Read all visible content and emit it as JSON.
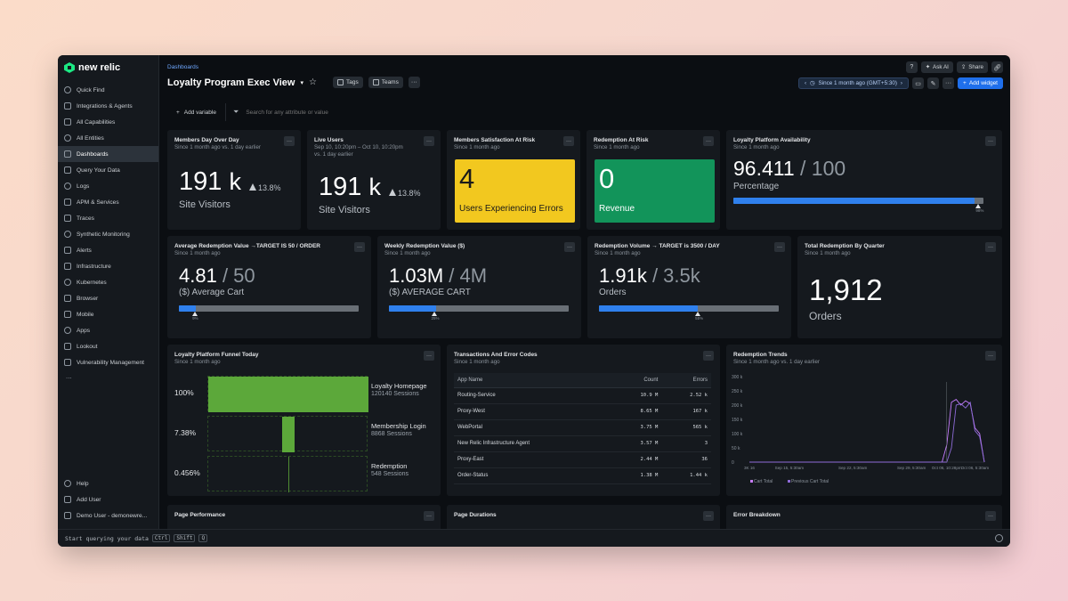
{
  "app": {
    "logo_text": "new relic"
  },
  "sidebar": {
    "items": [
      {
        "label": "Quick Find",
        "icon": "search-icon"
      },
      {
        "label": "Integrations & Agents",
        "icon": "plus-icon"
      },
      {
        "label": "All Capabilities",
        "icon": "grid-icon"
      },
      {
        "label": "All Entities",
        "icon": "entities-icon"
      },
      {
        "label": "Dashboards",
        "icon": "dashboard-icon",
        "active": true
      },
      {
        "label": "Query Your Data",
        "icon": "query-icon"
      },
      {
        "label": "Logs",
        "icon": "logs-icon"
      },
      {
        "label": "APM & Services",
        "icon": "apm-icon"
      },
      {
        "label": "Traces",
        "icon": "traces-icon"
      },
      {
        "label": "Synthetic Monitoring",
        "icon": "synthetics-icon"
      },
      {
        "label": "Alerts",
        "icon": "alerts-icon"
      },
      {
        "label": "Infrastructure",
        "icon": "infrastructure-icon"
      },
      {
        "label": "Kubernetes",
        "icon": "kubernetes-icon"
      },
      {
        "label": "Browser",
        "icon": "browser-icon"
      },
      {
        "label": "Mobile",
        "icon": "mobile-icon"
      },
      {
        "label": "Apps",
        "icon": "apps-icon"
      },
      {
        "label": "Lookout",
        "icon": "lookout-icon"
      },
      {
        "label": "Vulnerability Management",
        "icon": "vulnerability-icon"
      }
    ],
    "more": "...",
    "bottom": [
      {
        "label": "Help",
        "icon": "help-icon"
      },
      {
        "label": "Add User",
        "icon": "add-user-icon"
      },
      {
        "label": "Demo User - demonewre...",
        "icon": "avatar-icon"
      }
    ]
  },
  "header": {
    "breadcrumb": "Dashboards",
    "title": "Loyalty Program Exec View",
    "title_chevron": "▾",
    "tags_label": "Tags",
    "teams_label": "Teams",
    "more": "···",
    "ask_ai": "Ask AI",
    "share": "Share",
    "time_range": "Since 1 month ago (GMT+5:30)",
    "add_widget": "Add widget"
  },
  "filter": {
    "add_variable": "Add variable",
    "search_placeholder": "Search for any attribute or value"
  },
  "widgets": {
    "members_day": {
      "title": "Members Day Over Day",
      "sub": "Since 1 month ago vs. 1 day earlier",
      "value": "191",
      "unit": "k",
      "delta": "13.8%",
      "label": "Site Visitors"
    },
    "live_users": {
      "title": "Live Users",
      "sub1": "Sep 10, 10:20pm – Oct 10, 10:20pm",
      "sub2": "vs. 1 day earlier",
      "value": "191",
      "unit": "k",
      "delta": "13.8%",
      "label": "Site Visitors"
    },
    "members_risk": {
      "title": "Members Satisfaction At Risk",
      "sub": "Since 1 month ago",
      "value": "4",
      "label": "Users Experiencing Errors",
      "color": "#f2c81f"
    },
    "redemption_risk": {
      "title": "Redemption At Risk",
      "sub": "Since 1 month ago",
      "value": "0",
      "label": "Revenue",
      "color": "#12945a"
    },
    "availability": {
      "title": "Loyalty Platform Availability",
      "sub": "Since 1 month ago",
      "value": "96.411",
      "target": "/ 100",
      "label": "Percentage",
      "progress": 0.964,
      "marker": 0.98,
      "marker_label": "98%"
    },
    "avg_redemption": {
      "title": "Average Redemption Value →TARGET IS 50 / ORDER",
      "sub": "Since 1 month ago",
      "value": "4.81",
      "target": "/ 50",
      "label": "($) Average Cart",
      "progress": 0.096,
      "marker": 0.09,
      "marker_label": "9%"
    },
    "weekly_redemption": {
      "title": "Weekly Redemption Value ($)",
      "sub": "Since 1 month ago",
      "value": "1.03M",
      "target": "/ 4M",
      "label": "($) AVERAGE CART",
      "progress": 0.26,
      "marker": 0.25,
      "marker_label": "25%"
    },
    "redemption_volume": {
      "title": "Redemption Volume → TARGET is 3500 / DAY",
      "sub": "Since 1 month ago",
      "value": "1.91k",
      "target": "/ 3.5k",
      "label": "Orders",
      "progress": 0.55,
      "marker": 0.55,
      "marker_label": "55%"
    },
    "total_redemption": {
      "title": "Total Redemption By Quarter",
      "sub": "Since 1 month ago",
      "value": "1,912",
      "label": "Orders"
    },
    "funnel": {
      "title": "Loyalty Platform Funnel Today",
      "sub": "Since 1 month ago",
      "steps": [
        {
          "pct": "100%",
          "fraction": 1.0,
          "name": "Loyalty Homepage",
          "sessions": "120140 Sessions"
        },
        {
          "pct": "7.38%",
          "fraction": 0.0738,
          "name": "Membership Login",
          "sessions": "8868 Sessions"
        },
        {
          "pct": "0.456%",
          "fraction": 0.00456,
          "name": "Redemption",
          "sessions": "548 Sessions"
        }
      ]
    },
    "transactions": {
      "title": "Transactions And Error Codes",
      "sub": "Since 1 month ago",
      "columns": [
        "App Name",
        "Count",
        "Errors"
      ],
      "rows": [
        [
          "Routing-Service",
          "10.9 M",
          "2.52 k"
        ],
        [
          "Proxy-West",
          "8.65 M",
          "167 k"
        ],
        [
          "WebPortal",
          "3.75 M",
          "565 k"
        ],
        [
          "New Relic Infrastructure Agent",
          "3.57 M",
          "3"
        ],
        [
          "Proxy-East",
          "2.44 M",
          "36"
        ],
        [
          "Order-Status",
          "1.38 M",
          "1.44 k"
        ]
      ]
    },
    "trends": {
      "title": "Redemption Trends",
      "sub": "Since 1 month ago vs. 1 day earlier"
    },
    "page_performance": {
      "title": "Page Performance"
    },
    "page_durations": {
      "title": "Page Durations"
    },
    "error_breakdown": {
      "title": "Error Breakdown"
    }
  },
  "chart_data": {
    "type": "line",
    "title": "Redemption Trends",
    "y_ticks": [
      "300 k",
      "250 k",
      "200 k",
      "150 k",
      "100 k",
      "50 k",
      "0"
    ],
    "ylim": [
      0,
      300000
    ],
    "x_ticks": [
      "3K 16",
      "Sep 15, 5:30am",
      "Sep 22, 5:30am",
      "Sep 29, 5:30am",
      "Oct 06, 10:28pm",
      "Oct 06, 5:30am"
    ],
    "x_tick_pos": [
      0,
      0.17,
      0.44,
      0.69,
      0.84,
      0.96
    ],
    "series": [
      {
        "name": "Cart Total",
        "color": "#c77dff",
        "x": [
          0,
          0.8,
          0.82,
          0.84,
          0.86,
          0.88,
          0.9,
          0.92,
          0.94,
          0.96,
          0.98,
          1.0
        ],
        "values": [
          0,
          0,
          0,
          60000,
          210000,
          220000,
          200000,
          215000,
          205000,
          120000,
          100000,
          0
        ]
      },
      {
        "name": "Previous Cart Total",
        "color": "#8e6bd8",
        "x": [
          0,
          0.82,
          0.84,
          0.86,
          0.88,
          0.9,
          0.92,
          0.94,
          0.96,
          0.98,
          1.0
        ],
        "values": [
          0,
          0,
          0,
          50000,
          200000,
          205000,
          190000,
          210000,
          110000,
          90000,
          0
        ]
      }
    ],
    "grid": false,
    "legend": "bottom-left"
  },
  "statusbar": {
    "query_hint": "Start querying your data",
    "k1": "Ctrl",
    "k2": "Shift",
    "k3": "Q"
  }
}
